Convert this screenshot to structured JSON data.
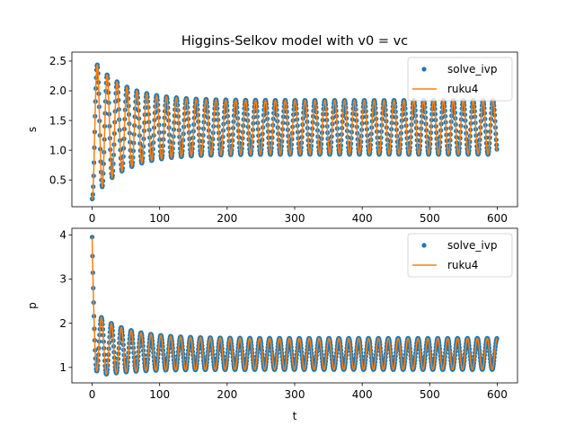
{
  "chart_data": [
    {
      "type": "line",
      "title": "Higgins-Selkov model with v0 = vc",
      "xlabel": "",
      "ylabel": "s",
      "xlim": [
        -30,
        630
      ],
      "ylim": [
        0.05,
        2.65
      ],
      "xticks": [
        0,
        100,
        200,
        300,
        400,
        500,
        600
      ],
      "yticks": [
        0.5,
        1.0,
        1.5,
        2.0,
        2.5
      ],
      "yticklabels": [
        "0.5",
        "1.0",
        "1.5",
        "2.0",
        "2.5"
      ],
      "legend_position": "top-right",
      "series": [
        {
          "name": "solve_ivp",
          "style": "dots",
          "color": "#1f77b4"
        },
        {
          "name": "ruku4",
          "style": "line",
          "color": "#ff7f0e"
        }
      ],
      "oscillation": {
        "t_range": [
          0,
          600
        ],
        "period": 14.65,
        "peak_start": 2.55,
        "peak_steady": 1.84,
        "trough_start": 0.17,
        "trough_steady": 0.93,
        "decay_time": 45
      }
    },
    {
      "type": "line",
      "title": "",
      "xlabel": "t",
      "ylabel": "p",
      "xlim": [
        -30,
        630
      ],
      "ylim": [
        0.65,
        4.15
      ],
      "xticks": [
        0,
        100,
        200,
        300,
        400,
        500,
        600
      ],
      "yticks": [
        1,
        2,
        3,
        4
      ],
      "yticklabels": [
        "1",
        "2",
        "3",
        "4"
      ],
      "legend_position": "top-right",
      "series": [
        {
          "name": "solve_ivp",
          "style": "dots",
          "color": "#1f77b4"
        },
        {
          "name": "ruku4",
          "style": "line",
          "color": "#ff7f0e"
        }
      ],
      "oscillation": {
        "t_range": [
          0,
          600
        ],
        "period": 14.65,
        "initial_value": 3.95,
        "peak_start": 2.3,
        "peak_steady": 1.66,
        "trough_start": 0.78,
        "trough_steady": 0.95,
        "decay_time": 45
      }
    }
  ]
}
